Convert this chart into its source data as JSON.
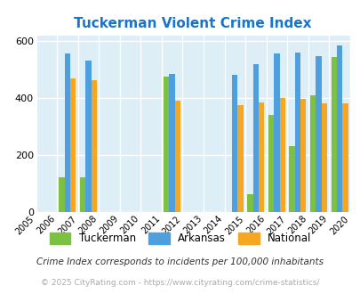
{
  "title": "Tuckerman Violent Crime Index",
  "title_color": "#1874cd",
  "data_years": [
    2006,
    2007,
    2011,
    2014,
    2015,
    2016,
    2017,
    2018,
    2019
  ],
  "all_years": [
    2005,
    2006,
    2007,
    2008,
    2009,
    2010,
    2011,
    2012,
    2013,
    2014,
    2015,
    2016,
    2017,
    2018,
    2019,
    2020
  ],
  "tuckerman": [
    120,
    120,
    475,
    0,
    60,
    340,
    230,
    410,
    545
  ],
  "arkansas": [
    555,
    530,
    485,
    480,
    520,
    555,
    560,
    548,
    585
  ],
  "national": [
    470,
    462,
    390,
    375,
    385,
    400,
    397,
    382,
    380
  ],
  "bar_width": 0.27,
  "colors": {
    "tuckerman": "#7dc142",
    "arkansas": "#4d9fde",
    "national": "#f5a623"
  },
  "ylim": [
    0,
    620
  ],
  "yticks": [
    0,
    200,
    400,
    600
  ],
  "background_color": "#ddeef6",
  "grid_color": "#ffffff",
  "footnote1": "Crime Index corresponds to incidents per 100,000 inhabitants",
  "footnote2": "© 2025 CityRating.com - https://www.cityrating.com/crime-statistics/",
  "legend_labels": [
    "Tuckerman",
    "Arkansas",
    "National"
  ]
}
